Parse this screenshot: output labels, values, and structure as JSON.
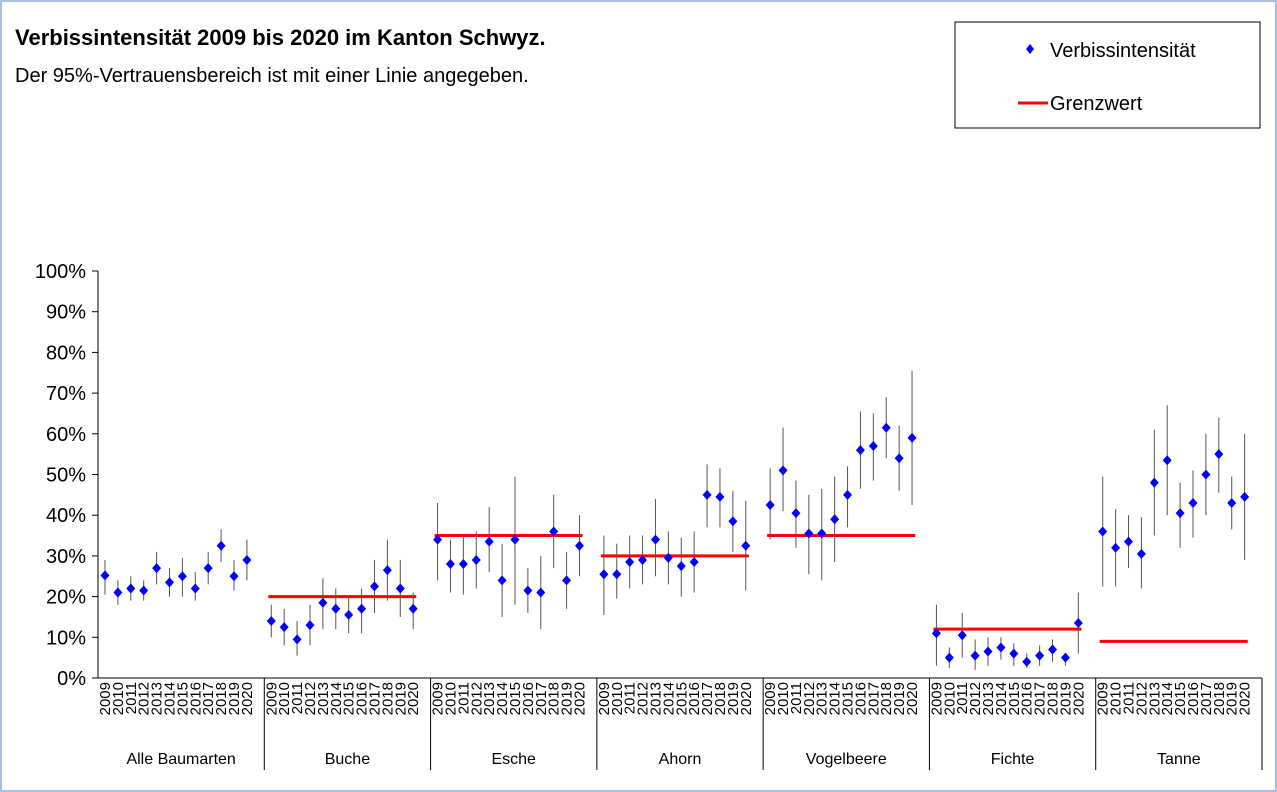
{
  "chart_data": {
    "type": "errorbar",
    "title": "Verbissintensität 2009 bis 2020 im Kanton Schwyz.",
    "subtitle": "Der 95%-Vertrauensbereich ist mit einer Linie angegeben.",
    "value_name": "Verbissintensität",
    "value_color": "#0000ff",
    "limit_name": "Grenzwert",
    "limit_color": "#ff0000",
    "legend": "top-right",
    "ylim": [
      0,
      100
    ],
    "yticks": [
      {
        "value": 0,
        "label": "0%"
      },
      {
        "value": 10,
        "label": "10%"
      },
      {
        "value": 20,
        "label": "20%"
      },
      {
        "value": 30,
        "label": "30%"
      },
      {
        "value": 40,
        "label": "40%"
      },
      {
        "value": 50,
        "label": "50%"
      },
      {
        "value": 60,
        "label": "60%"
      },
      {
        "value": 70,
        "label": "70%"
      },
      {
        "value": 80,
        "label": "80%"
      },
      {
        "value": 90,
        "label": "90%"
      },
      {
        "value": 100,
        "label": "100%"
      }
    ],
    "years": [
      "2009",
      "2010",
      "2011",
      "2012",
      "2013",
      "2014",
      "2015",
      "2016",
      "2017",
      "2018",
      "2019",
      "2020"
    ],
    "groups": [
      {
        "name": "Alle Baumarten",
        "values": [
          25.2,
          21,
          22,
          21.5,
          27,
          23.5,
          25,
          22,
          27,
          32.5,
          25,
          29
        ],
        "lower": [
          20.5,
          18,
          19,
          19,
          23,
          20,
          20,
          19,
          23,
          28.5,
          21.5,
          24
        ],
        "upper": [
          29,
          24,
          25,
          24,
          31,
          27,
          29.5,
          26,
          31,
          36.5,
          29,
          34
        ],
        "limit": null
      },
      {
        "name": "Buche",
        "values": [
          14,
          12.5,
          9.5,
          13,
          18.5,
          17,
          15.5,
          17,
          22.5,
          26.5,
          22,
          17
        ],
        "lower": [
          10,
          8,
          5.5,
          8,
          12,
          12,
          11,
          11,
          16,
          19,
          15,
          12
        ],
        "upper": [
          18,
          17,
          14,
          18,
          24.5,
          22,
          20,
          22,
          29,
          34,
          29,
          21
        ],
        "limit": 20
      },
      {
        "name": "Esche",
        "values": [
          34,
          28,
          28,
          29,
          33.5,
          24,
          34,
          21.5,
          21,
          36,
          24,
          32.5
        ],
        "lower": [
          24,
          21,
          20.5,
          22,
          26,
          15,
          18,
          16,
          12,
          27,
          17,
          25
        ],
        "upper": [
          43,
          34,
          35,
          36,
          42,
          33,
          49.5,
          27,
          30,
          45,
          31,
          40
        ],
        "limit": 35
      },
      {
        "name": "Ahorn",
        "values": [
          25.5,
          25.5,
          28.5,
          29,
          34,
          29.5,
          27.5,
          28.5,
          45,
          44.5,
          38.5,
          32.5
        ],
        "lower": [
          15.5,
          19.5,
          22,
          23,
          25,
          23,
          20,
          21,
          37,
          37,
          31,
          21.5
        ],
        "upper": [
          35,
          33,
          35,
          35,
          44,
          36,
          34.5,
          36,
          52.5,
          51.5,
          46,
          43.5
        ],
        "limit": 30
      },
      {
        "name": "Vogelbeere",
        "values": [
          42.5,
          51,
          40.5,
          35.5,
          35.5,
          39,
          45,
          56,
          57,
          61.5,
          54,
          59
        ],
        "lower": [
          34,
          41,
          32,
          25.5,
          24,
          28.5,
          37,
          46.5,
          48.5,
          54,
          46,
          42.5
        ],
        "upper": [
          51.5,
          61.5,
          48.5,
          45,
          46.5,
          49.5,
          52,
          65.5,
          65,
          69,
          62,
          75.5
        ],
        "limit": 35
      },
      {
        "name": "Fichte",
        "values": [
          11,
          5,
          10.5,
          5.5,
          6.5,
          7.5,
          6,
          4,
          5.5,
          7,
          5,
          13.5
        ],
        "lower": [
          3,
          2.5,
          5,
          2,
          3,
          4.5,
          3,
          2.5,
          3,
          4,
          3,
          6
        ],
        "upper": [
          18,
          7.5,
          16,
          9.5,
          10,
          10,
          8.5,
          6,
          8,
          9.5,
          6,
          21
        ],
        "limit": 12
      },
      {
        "name": "Tanne",
        "values": [
          36,
          32,
          33.5,
          30.5,
          48,
          53.5,
          40.5,
          43,
          50,
          55,
          43,
          44.5
        ],
        "lower": [
          22.5,
          22.5,
          27,
          22,
          35,
          40,
          32,
          34.5,
          40,
          45.5,
          36.5,
          29
        ],
        "upper": [
          49.5,
          41.5,
          40,
          39.5,
          61,
          67,
          48,
          51,
          60,
          64,
          49.5,
          60
        ],
        "limit": 9
      }
    ]
  }
}
